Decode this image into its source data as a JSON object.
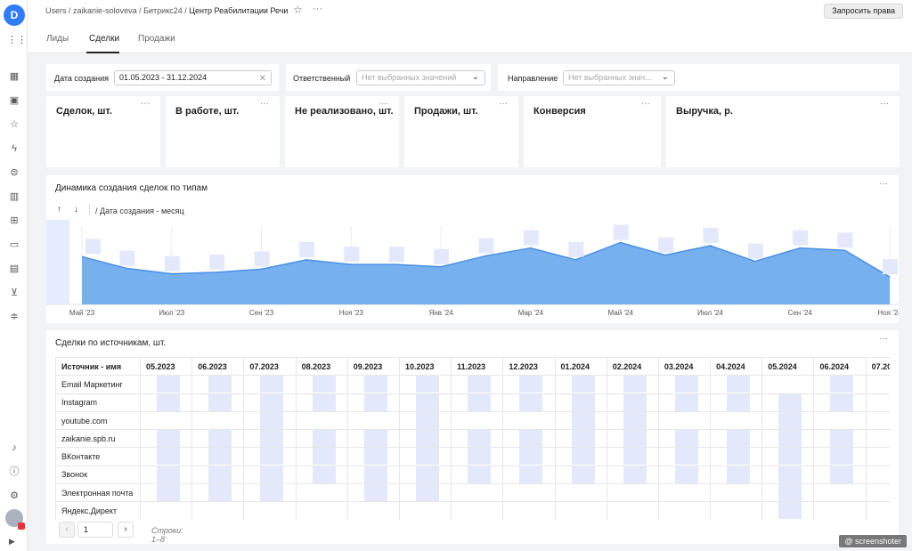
{
  "breadcrumbs": {
    "items": [
      "Users",
      "zaikanie-soloveva",
      "Битрикс24"
    ],
    "current": "Центр Реабилитации Речи",
    "separator": " / "
  },
  "header": {
    "request_button": "Запросить права"
  },
  "tabs": [
    {
      "label": "Лиды"
    },
    {
      "label": "Сделки",
      "active": true
    },
    {
      "label": "Продажи"
    }
  ],
  "filters": {
    "created": {
      "label": "Дата создания",
      "value": "01.05.2023 - 31.12.2024"
    },
    "responsible": {
      "label": "Ответственный",
      "placeholder": "Нет выбранных значений"
    },
    "direction": {
      "label": "Направление",
      "placeholder": "Нет выбранных знач..."
    }
  },
  "kpis": [
    {
      "title": "Сделок, шт."
    },
    {
      "title": "В работе, шт."
    },
    {
      "title": "Не реализовано, шт."
    },
    {
      "title": "Продажи, шт."
    },
    {
      "title": "Конверсия"
    },
    {
      "title": "Выручка, р."
    }
  ],
  "chart_panel": {
    "title": "Динамика создания сделок по типам",
    "x_field": "/ Дата создания - месяц"
  },
  "chart_data": {
    "type": "area",
    "title": "Динамика создания сделок по типам",
    "xlabel": "Дата создания - месяц",
    "ylabel": "",
    "x_ticks": [
      "Май '23",
      "Июл '23",
      "Сен '23",
      "Ноя '23",
      "Янв '24",
      "Мар '24",
      "Май '24",
      "Июл '24",
      "Сен '24",
      "Ноя '24"
    ],
    "x": [
      "05.2023",
      "06.2023",
      "07.2023",
      "08.2023",
      "09.2023",
      "10.2023",
      "11.2023",
      "12.2023",
      "01.2024",
      "02.2024",
      "03.2024",
      "04.2024",
      "05.2024",
      "06.2024",
      "07.2024",
      "08.2024",
      "09.2024",
      "10.2024",
      "11.2024"
    ],
    "values": [
      0.61,
      0.46,
      0.39,
      0.41,
      0.45,
      0.57,
      0.51,
      0.51,
      0.48,
      0.62,
      0.72,
      0.57,
      0.79,
      0.63,
      0.75,
      0.55,
      0.72,
      0.69,
      0.35
    ],
    "grid": true,
    "color": "#77b0ef",
    "line_color": "#4a90e2"
  },
  "table_panel": {
    "title": "Сделки по источникам, шт.",
    "source_header": "Источник - имя"
  },
  "table": {
    "columns": [
      "05.2023",
      "06.2023",
      "07.2023",
      "08.2023",
      "09.2023",
      "10.2023",
      "11.2023",
      "12.2023",
      "01.2024",
      "02.2024",
      "03.2024",
      "04.2024",
      "05.2024",
      "06.2024",
      "07.20"
    ],
    "rows": [
      {
        "source": "Email Маркетинг",
        "filled": [
          1,
          1,
          1,
          1,
          1,
          1,
          1,
          1,
          1,
          1,
          1,
          1,
          0,
          1,
          0
        ]
      },
      {
        "source": "Instagram",
        "filled": [
          1,
          1,
          1,
          1,
          1,
          1,
          1,
          1,
          1,
          1,
          1,
          1,
          1,
          1,
          0
        ]
      },
      {
        "source": "youtube.com",
        "filled": [
          0,
          0,
          1,
          0,
          0,
          1,
          0,
          0,
          1,
          1,
          0,
          0,
          1,
          0,
          0
        ]
      },
      {
        "source": "zaikanie.spb.ru",
        "filled": [
          1,
          1,
          1,
          1,
          1,
          1,
          1,
          1,
          1,
          1,
          1,
          1,
          1,
          1,
          0
        ]
      },
      {
        "source": "ВКонтакте",
        "filled": [
          1,
          1,
          1,
          1,
          1,
          1,
          1,
          1,
          1,
          1,
          1,
          1,
          1,
          1,
          0
        ]
      },
      {
        "source": "Звонок",
        "filled": [
          1,
          1,
          1,
          1,
          1,
          1,
          1,
          1,
          1,
          1,
          1,
          1,
          1,
          1,
          0
        ]
      },
      {
        "source": "Электронная почта",
        "filled": [
          1,
          1,
          1,
          0,
          1,
          1,
          0,
          0,
          0,
          0,
          0,
          0,
          1,
          0,
          0
        ]
      },
      {
        "source": "Яндекс.Директ",
        "filled": [
          0,
          0,
          0,
          0,
          0,
          0,
          0,
          0,
          0,
          0,
          0,
          0,
          1,
          0,
          0
        ]
      }
    ]
  },
  "pagination": {
    "page": "1",
    "rows_label": "Строки: 1–8"
  },
  "watermark": "@ screenshoter",
  "sidebar_icons": [
    "dashboard-icon",
    "collections-icon",
    "favorites-icon",
    "lightning-icon",
    "connections-icon",
    "charts-icon",
    "datasets-icon",
    "monitor-icon",
    "folder-icon",
    "cart-icon",
    "settings-sliders-icon"
  ],
  "sidebar_bottom_icons": [
    "notifications-icon",
    "help-icon",
    "settings-icon"
  ]
}
